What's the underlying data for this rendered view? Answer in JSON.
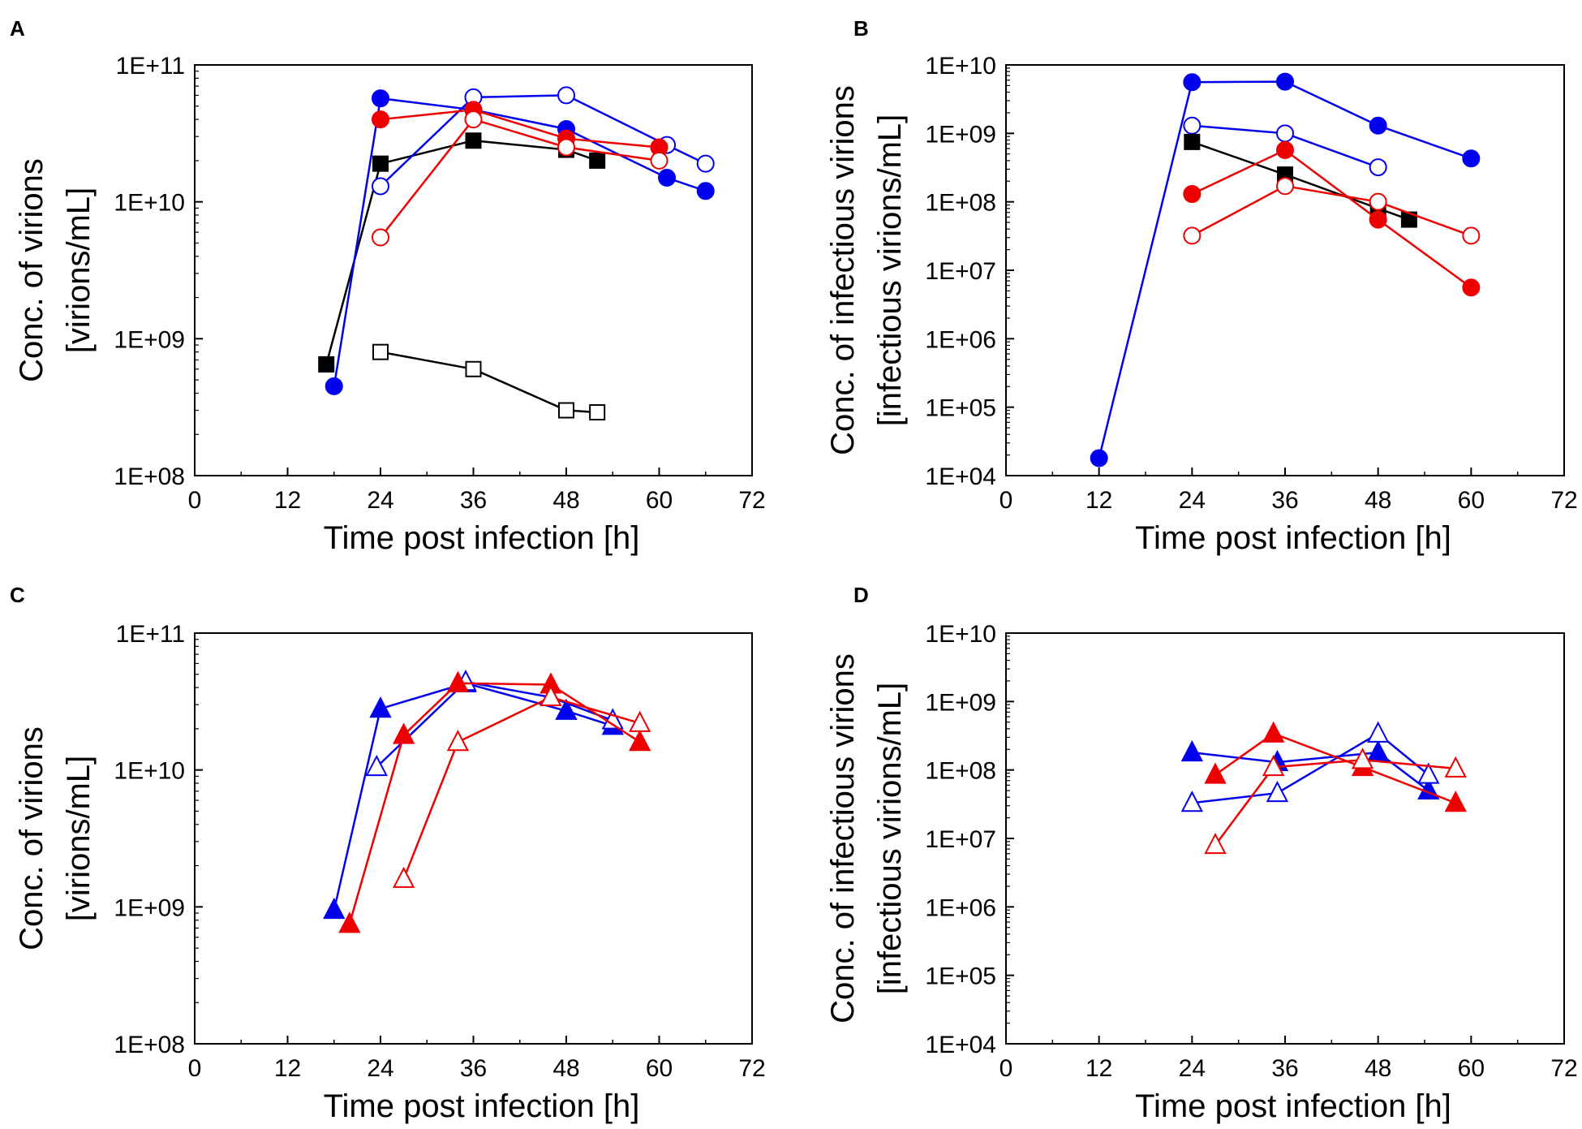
{
  "chart_data": [
    {
      "panel": "A",
      "type": "line",
      "xlabel": "Time post infection [h]",
      "ylabel_lines": [
        "Conc. of virions",
        "[virions/mL]"
      ],
      "x_ticks": [
        "0",
        "12",
        "24",
        "36",
        "48",
        "60",
        "72"
      ],
      "xlim": [
        0,
        72
      ],
      "yscale": "log",
      "ylim": [
        100000000,
        100000000000
      ],
      "y_ticks": [
        "1E+08",
        "1E+09",
        "1E+10",
        "1E+11"
      ],
      "series": [
        {
          "color": "#000000",
          "marker": "square",
          "filled": true,
          "x": [
            17,
            24,
            36,
            48,
            52
          ],
          "y": [
            650000000,
            19000000000,
            28000000000,
            24000000000,
            20000000000
          ]
        },
        {
          "color": "#000000",
          "marker": "square",
          "filled": false,
          "x": [
            24,
            36,
            48,
            52
          ],
          "y": [
            800000000,
            600000000,
            300000000,
            290000000
          ]
        },
        {
          "color": "#0000ee",
          "marker": "circle",
          "filled": true,
          "x": [
            18,
            24,
            36,
            48,
            61,
            66
          ],
          "y": [
            450000000,
            57000000000,
            47000000000,
            34000000000,
            15000000000,
            12000000000
          ]
        },
        {
          "color": "#0000ee",
          "marker": "circle",
          "filled": false,
          "x": [
            24,
            36,
            48,
            61,
            66
          ],
          "y": [
            13000000000,
            58000000000,
            60000000000,
            26000000000,
            19000000000
          ]
        },
        {
          "color": "#ee0000",
          "marker": "circle",
          "filled": true,
          "x": [
            24,
            36,
            48,
            60
          ],
          "y": [
            40000000000,
            47000000000,
            29000000000,
            25000000000
          ]
        },
        {
          "color": "#ee0000",
          "marker": "circle",
          "filled": false,
          "x": [
            24,
            36,
            48,
            60
          ],
          "y": [
            5500000000,
            40000000000,
            25000000000,
            20000000000
          ]
        }
      ]
    },
    {
      "panel": "B",
      "type": "line",
      "xlabel": "Time post infection [h]",
      "ylabel_lines": [
        "Conc. of infectious virions",
        "[infectious virions/mL]"
      ],
      "x_ticks": [
        "0",
        "12",
        "24",
        "36",
        "48",
        "60",
        "72"
      ],
      "xlim": [
        0,
        72
      ],
      "yscale": "log",
      "ylim": [
        10000,
        10000000000
      ],
      "y_ticks": [
        "1E+04",
        "1E+05",
        "1E+06",
        "1E+07",
        "1E+08",
        "1E+09",
        "1E+10"
      ],
      "series": [
        {
          "color": "#0000ee",
          "marker": "circle",
          "filled": true,
          "x": [
            12,
            24,
            36,
            48,
            60
          ],
          "y": [
            18000,
            5600000000,
            5700000000,
            1300000000,
            430000000
          ]
        },
        {
          "color": "#0000ee",
          "marker": "circle",
          "filled": false,
          "x": [
            24,
            36,
            48
          ],
          "y": [
            1300000000,
            1000000000,
            320000000
          ]
        },
        {
          "color": "#000000",
          "marker": "square",
          "filled": true,
          "x": [
            24,
            36,
            48,
            52
          ],
          "y": [
            750000000,
            250000000,
            80000000,
            55000000
          ]
        },
        {
          "color": "#ee0000",
          "marker": "circle",
          "filled": true,
          "x": [
            24,
            36,
            48,
            60
          ],
          "y": [
            130000000,
            570000000,
            55000000,
            5600000
          ]
        },
        {
          "color": "#ee0000",
          "marker": "circle",
          "filled": false,
          "x": [
            24,
            36,
            48,
            60
          ],
          "y": [
            32000000,
            170000000,
            100000000,
            32000000
          ]
        }
      ]
    },
    {
      "panel": "C",
      "type": "line",
      "xlabel": "Time post infection [h]",
      "ylabel_lines": [
        "Conc. of virions",
        "[virions/mL]"
      ],
      "x_ticks": [
        "0",
        "12",
        "24",
        "36",
        "48",
        "60",
        "72"
      ],
      "xlim": [
        0,
        72
      ],
      "yscale": "log",
      "ylim": [
        100000000,
        100000000000
      ],
      "y_ticks": [
        "1E+08",
        "1E+09",
        "1E+10",
        "1E+11"
      ],
      "series": [
        {
          "color": "#0000ee",
          "marker": "triangle",
          "filled": true,
          "x": [
            18,
            24,
            35,
            48,
            54
          ],
          "y": [
            950000000,
            28000000000,
            43000000000,
            27000000000,
            21000000000
          ]
        },
        {
          "color": "#0000ee",
          "marker": "triangle",
          "filled": false,
          "x": [
            23.5,
            35,
            46,
            54
          ],
          "y": [
            10500000000,
            44000000000,
            34000000000,
            23000000000
          ]
        },
        {
          "color": "#ee0000",
          "marker": "triangle",
          "filled": true,
          "x": [
            20,
            27,
            34,
            46,
            57.5
          ],
          "y": [
            750000000,
            18000000000,
            43000000000,
            42000000000,
            16000000000
          ]
        },
        {
          "color": "#ee0000",
          "marker": "triangle",
          "filled": false,
          "x": [
            27,
            34,
            46,
            57.5
          ],
          "y": [
            1600000000,
            16000000000,
            34000000000,
            22000000000
          ]
        }
      ]
    },
    {
      "panel": "D",
      "type": "line",
      "xlabel": "Time post infection [h]",
      "ylabel_lines": [
        "Conc. of infectious virions",
        "[infectious virions/mL]"
      ],
      "x_ticks": [
        "0",
        "12",
        "24",
        "36",
        "48",
        "60",
        "72"
      ],
      "xlim": [
        0,
        72
      ],
      "yscale": "log",
      "ylim": [
        10000,
        10000000000
      ],
      "y_ticks": [
        "1E+04",
        "1E+05",
        "1E+06",
        "1E+07",
        "1E+08",
        "1E+09",
        "1E+10"
      ],
      "series": [
        {
          "color": "#0000ee",
          "marker": "triangle",
          "filled": true,
          "x": [
            24,
            35,
            48,
            54.5
          ],
          "y": [
            180000000,
            130000000,
            180000000,
            50000000
          ]
        },
        {
          "color": "#0000ee",
          "marker": "triangle",
          "filled": false,
          "x": [
            24,
            35,
            48,
            54.5
          ],
          "y": [
            33000000,
            46000000,
            340000000,
            85000000
          ]
        },
        {
          "color": "#ee0000",
          "marker": "triangle",
          "filled": true,
          "x": [
            27,
            34.5,
            46,
            58
          ],
          "y": [
            85000000,
            340000000,
            110000000,
            33000000
          ]
        },
        {
          "color": "#ee0000",
          "marker": "triangle",
          "filled": false,
          "x": [
            27,
            34.5,
            46,
            58
          ],
          "y": [
            8000000,
            110000000,
            140000000,
            105000000
          ]
        }
      ]
    }
  ]
}
